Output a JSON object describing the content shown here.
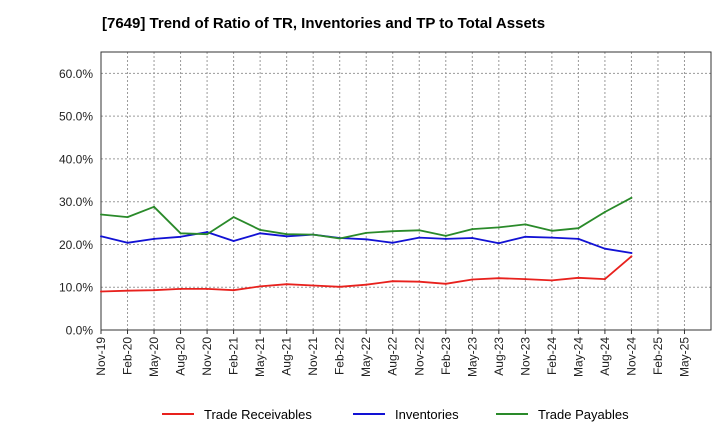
{
  "chart_data": {
    "type": "line",
    "title": "[7649]  Trend of Ratio of TR, Inventories and TP to Total Assets",
    "xlabel": "",
    "ylabel": "",
    "ylim": [
      0,
      65
    ],
    "y_ticks": [
      "0.0%",
      "10.0%",
      "20.0%",
      "30.0%",
      "40.0%",
      "50.0%",
      "60.0%"
    ],
    "y_tick_values": [
      0,
      10,
      20,
      30,
      40,
      50,
      60
    ],
    "x_tick_labels": [
      "Nov-19",
      "Feb-20",
      "May-20",
      "Aug-20",
      "Nov-20",
      "Feb-21",
      "May-21",
      "Aug-21",
      "Nov-21",
      "Feb-22",
      "May-22",
      "Aug-22",
      "Nov-22",
      "Feb-23",
      "May-23",
      "Aug-23",
      "Nov-23",
      "Feb-24",
      "May-24",
      "Aug-24",
      "Nov-24",
      "Feb-25",
      "May-25"
    ],
    "grid": true,
    "legend_position": "bottom",
    "series": [
      {
        "name": "Trade Receivables",
        "color": "#e8211d",
        "values": [
          9.0,
          9.2,
          9.3,
          9.6,
          9.6,
          9.3,
          10.2,
          10.7,
          10.4,
          10.1,
          10.6,
          11.4,
          11.3,
          10.8,
          11.8,
          12.1,
          11.9,
          11.6,
          12.2,
          11.9,
          17.2
        ]
      },
      {
        "name": "Inventories",
        "color": "#1212d4",
        "values": [
          21.9,
          20.4,
          21.3,
          21.8,
          22.9,
          20.8,
          22.6,
          21.9,
          22.3,
          21.5,
          21.2,
          20.4,
          21.6,
          21.3,
          21.5,
          20.3,
          21.8,
          21.6,
          21.3,
          19.0,
          18.0
        ]
      },
      {
        "name": "Trade Payables",
        "color": "#2a8a2a",
        "values": [
          27.0,
          26.4,
          28.8,
          22.6,
          22.4,
          26.4,
          23.4,
          22.4,
          22.3,
          21.4,
          22.7,
          23.1,
          23.3,
          22.0,
          23.6,
          24.0,
          24.7,
          23.2,
          23.8,
          27.6,
          30.9
        ]
      }
    ]
  }
}
